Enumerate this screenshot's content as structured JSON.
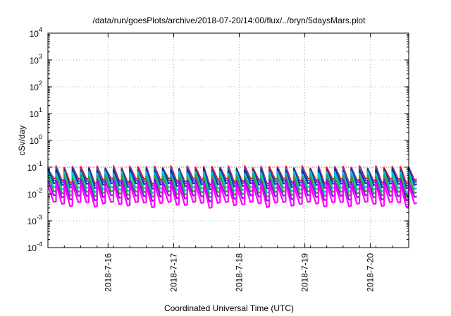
{
  "chart_data": {
    "type": "line",
    "title": "/data/run/goesPlots/archive/2018-07-20/14:00/flux/../bryn/5daysMars.plot",
    "xlabel": "Coordinated Universal Time (UTC)",
    "ylabel": "cSv/day",
    "x_range": [
      "2018-07-15 02:00",
      "2018-07-20 14:00"
    ],
    "x_ticks": [
      "2018-7-16",
      "2018-7-17",
      "2018-7-18",
      "2018-7-19",
      "2018-7-20"
    ],
    "y_scale": "log",
    "ylim": [
      0.0001,
      10000
    ],
    "y_ticks": [
      {
        "base": "10",
        "exp": "-4"
      },
      {
        "base": "10",
        "exp": "-3"
      },
      {
        "base": "10",
        "exp": "-2"
      },
      {
        "base": "10",
        "exp": "-1"
      },
      {
        "base": "10",
        "exp": "0"
      },
      {
        "base": "10",
        "exp": "1"
      },
      {
        "base": "10",
        "exp": "2"
      },
      {
        "base": "10",
        "exp": "3"
      },
      {
        "base": "10",
        "exp": "4"
      }
    ],
    "grid": true,
    "reference_line": {
      "y": 0.1,
      "color": "#ff4d4d"
    },
    "cycle_hours": 3,
    "series": [
      {
        "color": "#ff0000",
        "peak": 0.11,
        "trough": 0.03
      },
      {
        "color": "#2060ff",
        "peak": 0.1,
        "trough": 0.025
      },
      {
        "color": "#1c2f8f",
        "peak": 0.09,
        "trough": 0.02
      },
      {
        "color": "#00c8c8",
        "peak": 0.07,
        "trough": 0.014
      },
      {
        "color": "#3a9a3a",
        "peak": 0.05,
        "trough": 0.01
      },
      {
        "color": "#a000ff",
        "peak": 0.035,
        "trough": 0.007
      },
      {
        "color": "#ff00ff",
        "peak": 0.025,
        "trough": 0.004
      }
    ]
  }
}
